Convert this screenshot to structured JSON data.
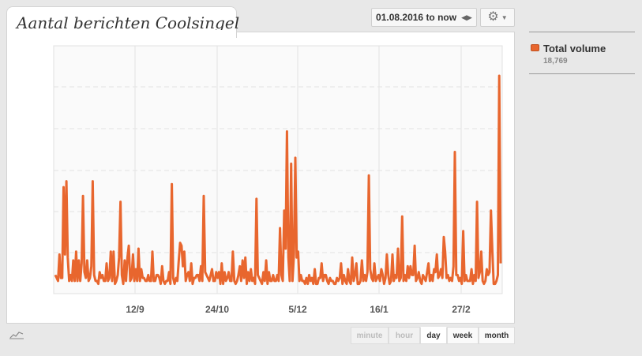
{
  "title": "Aantal berichten Coolsingel",
  "date_range": "01.08.2016 to now",
  "icons": {
    "date_arrows": "left-right-arrows-icon",
    "settings": "gear-icon",
    "dropdown": "chevron-down-icon",
    "mini_chart": "line-chart-icon"
  },
  "legend": {
    "name": "Total volume",
    "count": "18,769",
    "color": "#e8662e"
  },
  "granularity": {
    "minute": "minute",
    "hour": "hour",
    "day": "day",
    "week": "week",
    "month": "month",
    "active": "day"
  },
  "chart_data": {
    "type": "line",
    "title": "",
    "xlabel": "",
    "ylabel": "",
    "grid": true,
    "x_ticks": [
      "12/9",
      "24/10",
      "5/12",
      "16/1",
      "27/2"
    ],
    "y_ticks": [],
    "series": [
      {
        "name": "Total volume",
        "color": "#e8662e",
        "values": [
          5,
          4,
          3,
          12,
          4,
          4,
          35,
          12,
          37,
          11,
          3,
          5,
          3,
          10,
          3,
          13,
          3,
          10,
          3,
          9,
          32,
          6,
          4,
          10,
          3,
          4,
          8,
          37,
          5,
          3,
          3,
          2,
          6,
          4,
          5,
          3,
          3,
          9,
          3,
          4,
          13,
          3,
          13,
          2,
          3,
          5,
          11,
          30,
          5,
          2,
          10,
          3,
          11,
          15,
          3,
          4,
          12,
          3,
          7,
          3,
          14,
          3,
          7,
          4,
          4,
          3,
          3,
          5,
          3,
          3,
          13,
          3,
          3,
          5,
          5,
          4,
          2,
          8,
          3,
          2,
          3,
          3,
          6,
          2,
          36,
          4,
          2,
          4,
          3,
          10,
          16,
          15,
          8,
          13,
          3,
          5,
          6,
          3,
          9,
          2,
          4,
          4,
          5,
          5,
          3,
          8,
          3,
          32,
          6,
          5,
          4,
          3,
          5,
          7,
          3,
          3,
          6,
          4,
          6,
          2,
          9,
          2,
          6,
          3,
          4,
          6,
          3,
          3,
          13,
          3,
          2,
          3,
          5,
          8,
          3,
          10,
          4,
          11,
          2,
          6,
          3,
          7,
          3,
          4,
          2,
          31,
          5,
          4,
          3,
          2,
          6,
          3,
          10,
          2,
          6,
          3,
          3,
          5,
          3,
          3,
          5,
          3,
          21,
          5,
          3,
          27,
          14,
          54,
          11,
          3,
          43,
          3,
          12,
          45,
          11,
          13,
          3,
          5,
          3,
          3,
          2,
          4,
          2,
          5,
          3,
          4,
          2,
          7,
          2,
          2,
          4,
          4,
          9,
          3,
          5,
          5,
          3,
          2,
          4,
          3,
          3,
          2,
          2,
          4,
          3,
          4,
          9,
          2,
          5,
          3,
          2,
          7,
          3,
          2,
          11,
          3,
          5,
          9,
          2,
          2,
          3,
          10,
          3,
          5,
          3,
          6,
          39,
          7,
          4,
          3,
          9,
          3,
          4,
          5,
          3,
          7,
          5,
          2,
          4,
          12,
          5,
          2,
          3,
          12,
          3,
          5,
          4,
          14,
          3,
          4,
          25,
          3,
          5,
          3,
          8,
          4,
          8,
          5,
          5,
          15,
          3,
          4,
          6,
          3,
          2,
          5,
          4,
          3,
          6,
          9,
          3,
          5,
          3,
          7,
          6,
          12,
          4,
          5,
          7,
          4,
          18,
          13,
          4,
          5,
          3,
          4,
          3,
          8,
          47,
          5,
          5,
          3,
          4,
          2,
          20,
          3,
          5,
          3,
          3,
          3,
          7,
          2,
          5,
          3,
          30,
          4,
          6,
          13,
          3,
          2,
          3,
          7,
          5,
          6,
          27,
          13,
          2,
          2,
          3,
          5,
          73,
          9
        ]
      }
    ]
  }
}
